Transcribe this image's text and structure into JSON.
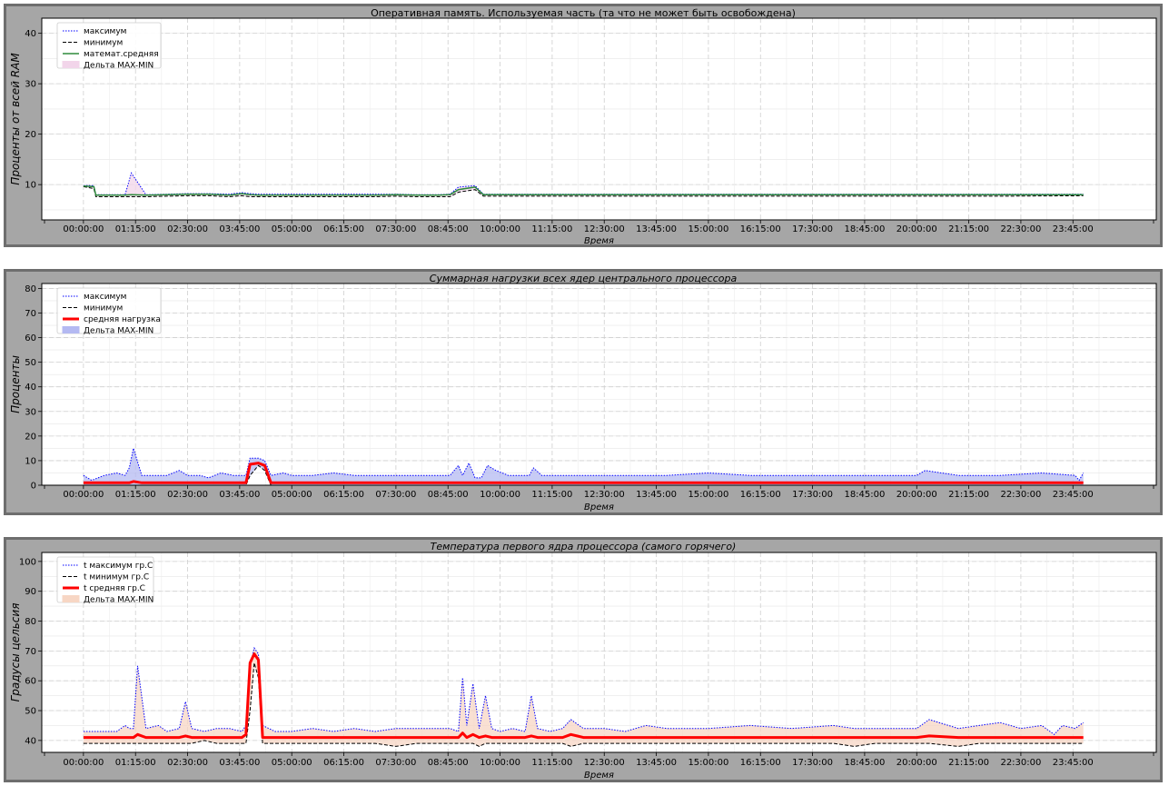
{
  "chart_data": [
    {
      "type": "line",
      "title": "Оперативная память. Используемая часть (та что не может быть освобождена)",
      "title_italic": false,
      "xlabel": "Время",
      "ylabel": "Проценты от всей RAM",
      "ylim": [
        3,
        43
      ],
      "yticks": [
        10,
        20,
        30,
        40
      ],
      "xlim_hours": [
        -1,
        25.75
      ],
      "xticks": [
        "00:00:00",
        "01:15:00",
        "02:30:00",
        "03:45:00",
        "05:00:00",
        "06:15:00",
        "07:30:00",
        "08:45:00",
        "10:00:00",
        "11:15:00",
        "12:30:00",
        "13:45:00",
        "15:00:00",
        "16:15:00",
        "17:30:00",
        "18:45:00",
        "20:00:00",
        "21:15:00",
        "22:30:00",
        "23:45:00"
      ],
      "grid": true,
      "legend_position": "top-left",
      "legend": [
        "максимум",
        "минимум",
        "математ.средняя",
        "Дельта MAX-MIN"
      ],
      "colors": {
        "max": "#0000ff",
        "min": "#000000",
        "avg": "#2e8b3c",
        "fill": "#f2d5ea"
      },
      "avg_width": 1.5,
      "series": {
        "x_hours": [
          0,
          0.25,
          0.3,
          0.5,
          1.0,
          1.15,
          1.5,
          2.0,
          2.5,
          3.0,
          3.5,
          3.8,
          4.0,
          4.2,
          5.0,
          6.0,
          7.0,
          7.5,
          8.0,
          8.5,
          8.8,
          9.0,
          9.4,
          9.6,
          10.0,
          12.0,
          14.0,
          16.0,
          18.0,
          20.0,
          22.0,
          24.0
        ],
        "max": [
          9.8,
          9.8,
          8.0,
          8.0,
          8.0,
          12.3,
          8.0,
          8.1,
          8.2,
          8.2,
          8.1,
          8.4,
          8.2,
          8.1,
          8.1,
          8.1,
          8.1,
          8.1,
          8.0,
          8.0,
          8.1,
          9.5,
          9.8,
          8.1,
          8.1,
          8.1,
          8.1,
          8.1,
          8.1,
          8.1,
          8.1,
          8.1
        ],
        "min": [
          9.6,
          9.2,
          7.6,
          7.6,
          7.6,
          7.6,
          7.6,
          7.7,
          7.8,
          7.8,
          7.6,
          7.8,
          7.6,
          7.6,
          7.6,
          7.6,
          7.6,
          7.7,
          7.6,
          7.6,
          7.6,
          8.5,
          9.0,
          7.7,
          7.7,
          7.7,
          7.7,
          7.7,
          7.7,
          7.7,
          7.7,
          7.8
        ],
        "avg": [
          9.7,
          9.6,
          7.9,
          7.9,
          7.9,
          8.0,
          7.9,
          8.0,
          8.1,
          8.1,
          7.9,
          8.2,
          8.0,
          7.9,
          7.9,
          7.9,
          7.9,
          8.0,
          7.9,
          7.9,
          8.0,
          9.0,
          9.5,
          8.0,
          8.0,
          8.0,
          8.0,
          8.0,
          8.0,
          8.0,
          8.0,
          8.0
        ]
      }
    },
    {
      "type": "line",
      "title": "Суммарная  нагрузки всех ядер центрального процессора",
      "title_italic": true,
      "xlabel": "Время",
      "ylabel": "Проценты",
      "ylim": [
        0,
        82
      ],
      "yticks": [
        0,
        10,
        20,
        30,
        40,
        50,
        60,
        70,
        80
      ],
      "xlim_hours": [
        -1,
        25.75
      ],
      "xticks": [
        "00:00:00",
        "01:15:00",
        "02:30:00",
        "03:45:00",
        "05:00:00",
        "06:15:00",
        "07:30:00",
        "08:45:00",
        "10:00:00",
        "11:15:00",
        "12:30:00",
        "13:45:00",
        "15:00:00",
        "16:15:00",
        "17:30:00",
        "18:45:00",
        "20:00:00",
        "21:15:00",
        "22:30:00",
        "23:45:00"
      ],
      "grid": true,
      "legend_position": "top-left",
      "legend": [
        "максимум",
        "минимум",
        "средняя нагрузка",
        "Дельта MAX-MIN"
      ],
      "colors": {
        "max": "#0000ff",
        "min": "#000000",
        "avg": "#ff0000",
        "fill": "#b4b9f2"
      },
      "avg_width": 3,
      "series": {
        "x_hours": [
          0,
          0.2,
          0.5,
          0.8,
          1.0,
          1.1,
          1.2,
          1.4,
          1.7,
          2.0,
          2.3,
          2.5,
          2.8,
          3.0,
          3.3,
          3.6,
          3.9,
          4.0,
          4.2,
          4.35,
          4.5,
          4.8,
          5.0,
          5.5,
          6.0,
          6.5,
          7.0,
          7.5,
          8.0,
          8.5,
          8.8,
          9.0,
          9.1,
          9.25,
          9.4,
          9.55,
          9.7,
          9.9,
          10.2,
          10.5,
          10.7,
          10.8,
          11.0,
          11.5,
          12.0,
          13.0,
          14.0,
          15.0,
          16.0,
          17.0,
          18.0,
          19.0,
          20.0,
          20.2,
          21.0,
          22.0,
          23.0,
          23.8,
          23.9,
          24.0
        ],
        "max": [
          4,
          2,
          4,
          5,
          4,
          7,
          15,
          4,
          4,
          4,
          6,
          4,
          4,
          3,
          5,
          4,
          4,
          11,
          11,
          10,
          4,
          5,
          4,
          4,
          5,
          4,
          4,
          4,
          4,
          4,
          4,
          8,
          4,
          9,
          3,
          3,
          8,
          6,
          4,
          4,
          4,
          7,
          4,
          4,
          4,
          4,
          4,
          5,
          4,
          4,
          4,
          4,
          4,
          6,
          4,
          4,
          5,
          4,
          2,
          5
        ],
        "min": [
          0,
          0,
          0,
          0,
          0,
          0,
          0,
          0,
          0,
          0,
          0,
          0,
          0,
          0,
          0,
          0,
          0,
          4,
          8,
          6,
          0,
          0,
          0,
          0,
          0,
          0,
          0,
          0,
          0,
          0,
          0,
          0,
          0,
          0,
          0,
          0,
          0,
          0,
          0,
          0,
          0,
          0,
          0,
          0,
          0,
          0,
          0,
          0,
          0,
          0,
          0,
          0,
          0,
          0,
          0,
          0,
          0,
          0,
          0,
          0
        ],
        "avg": [
          1,
          1,
          1,
          1,
          1,
          1,
          1.5,
          1,
          1,
          1,
          1,
          1,
          1,
          1,
          1,
          1,
          1,
          8.5,
          9,
          8,
          1,
          1,
          1,
          1,
          1,
          1,
          1,
          1,
          1,
          1,
          1,
          1,
          1,
          1,
          1,
          1,
          1,
          1,
          1,
          1,
          1,
          1,
          1,
          1,
          1,
          1,
          1,
          1,
          1,
          1,
          1,
          1,
          1,
          1,
          1,
          1,
          1,
          1,
          1,
          1
        ]
      }
    },
    {
      "type": "line",
      "title": "Температура первого ядра процессора (самого горячего)",
      "title_italic": true,
      "xlabel": "Время",
      "ylabel": "Градусы  цельсия",
      "ylim": [
        36,
        103
      ],
      "yticks": [
        40,
        50,
        60,
        70,
        80,
        90,
        100
      ],
      "xlim_hours": [
        -1,
        25.75
      ],
      "xticks": [
        "00:00:00",
        "01:15:00",
        "02:30:00",
        "03:45:00",
        "05:00:00",
        "06:15:00",
        "07:30:00",
        "08:45:00",
        "10:00:00",
        "11:15:00",
        "12:30:00",
        "13:45:00",
        "15:00:00",
        "16:15:00",
        "17:30:00",
        "18:45:00",
        "20:00:00",
        "21:15:00",
        "22:30:00",
        "23:45:00"
      ],
      "grid": true,
      "legend_position": "top-left",
      "legend": [
        "t максимум гр.С",
        "t минимум гр.С",
        "t средняя гр.С",
        "Дельта MAX-MIN"
      ],
      "colors": {
        "max": "#0000ff",
        "min": "#000000",
        "avg": "#ff0000",
        "fill": "#f7d6c4"
      },
      "avg_width": 3,
      "series": {
        "x_hours": [
          0,
          0.5,
          0.8,
          1.0,
          1.1,
          1.2,
          1.3,
          1.5,
          1.8,
          2.0,
          2.3,
          2.45,
          2.6,
          2.9,
          3.2,
          3.5,
          3.8,
          3.9,
          4.0,
          4.1,
          4.2,
          4.3,
          4.45,
          4.6,
          5.0,
          5.5,
          6.0,
          6.5,
          7.0,
          7.5,
          8.0,
          8.5,
          8.8,
          9.0,
          9.1,
          9.2,
          9.35,
          9.5,
          9.65,
          9.8,
          10.0,
          10.3,
          10.6,
          10.75,
          10.9,
          11.2,
          11.5,
          11.7,
          12.0,
          12.5,
          13.0,
          13.5,
          14.0,
          15.0,
          16.0,
          17.0,
          18.0,
          18.5,
          19.0,
          20.0,
          20.3,
          21.0,
          21.5,
          22.0,
          22.5,
          23.0,
          23.3,
          23.5,
          23.8,
          24.0
        ],
        "max": [
          43,
          43,
          43,
          45,
          44,
          44,
          65,
          44,
          45,
          43,
          44,
          53,
          44,
          43,
          44,
          44,
          43,
          45,
          65,
          71,
          69,
          45,
          44,
          43,
          43,
          44,
          43,
          44,
          43,
          44,
          44,
          44,
          44,
          43,
          61,
          45,
          59,
          44,
          55,
          44,
          43,
          44,
          43,
          55,
          44,
          43,
          44,
          47,
          44,
          44,
          43,
          45,
          44,
          44,
          45,
          44,
          45,
          44,
          44,
          44,
          47,
          44,
          45,
          46,
          44,
          45,
          42,
          45,
          44,
          46
        ],
        "min": [
          39,
          39,
          39,
          39,
          39,
          39,
          39,
          39,
          39,
          39,
          39,
          39,
          39,
          40,
          39,
          39,
          39,
          39,
          50,
          66,
          61,
          39,
          39,
          39,
          39,
          39,
          39,
          39,
          39,
          38,
          39,
          39,
          39,
          39,
          39,
          39,
          39,
          38,
          39,
          39,
          39,
          39,
          39,
          39,
          39,
          39,
          39,
          38,
          39,
          39,
          39,
          39,
          39,
          39,
          39,
          39,
          39,
          38,
          39,
          39,
          39,
          38,
          39,
          39,
          39,
          39,
          39,
          39,
          39,
          39
        ],
        "avg": [
          41,
          41,
          41,
          41,
          41,
          41,
          42,
          41,
          41,
          41,
          41,
          41.5,
          41,
          41,
          41,
          41,
          41,
          42,
          66,
          69,
          67,
          41,
          41,
          41,
          41,
          41,
          41,
          41,
          41,
          41,
          41,
          41,
          41,
          41,
          42.5,
          41,
          42,
          41,
          41.5,
          41,
          41,
          41,
          41,
          41.5,
          41,
          41,
          41,
          42,
          41,
          41,
          41,
          41,
          41,
          41,
          41,
          41,
          41,
          41,
          41,
          41,
          41.5,
          41,
          41,
          41,
          41,
          41,
          41,
          41,
          41,
          41
        ]
      }
    }
  ]
}
